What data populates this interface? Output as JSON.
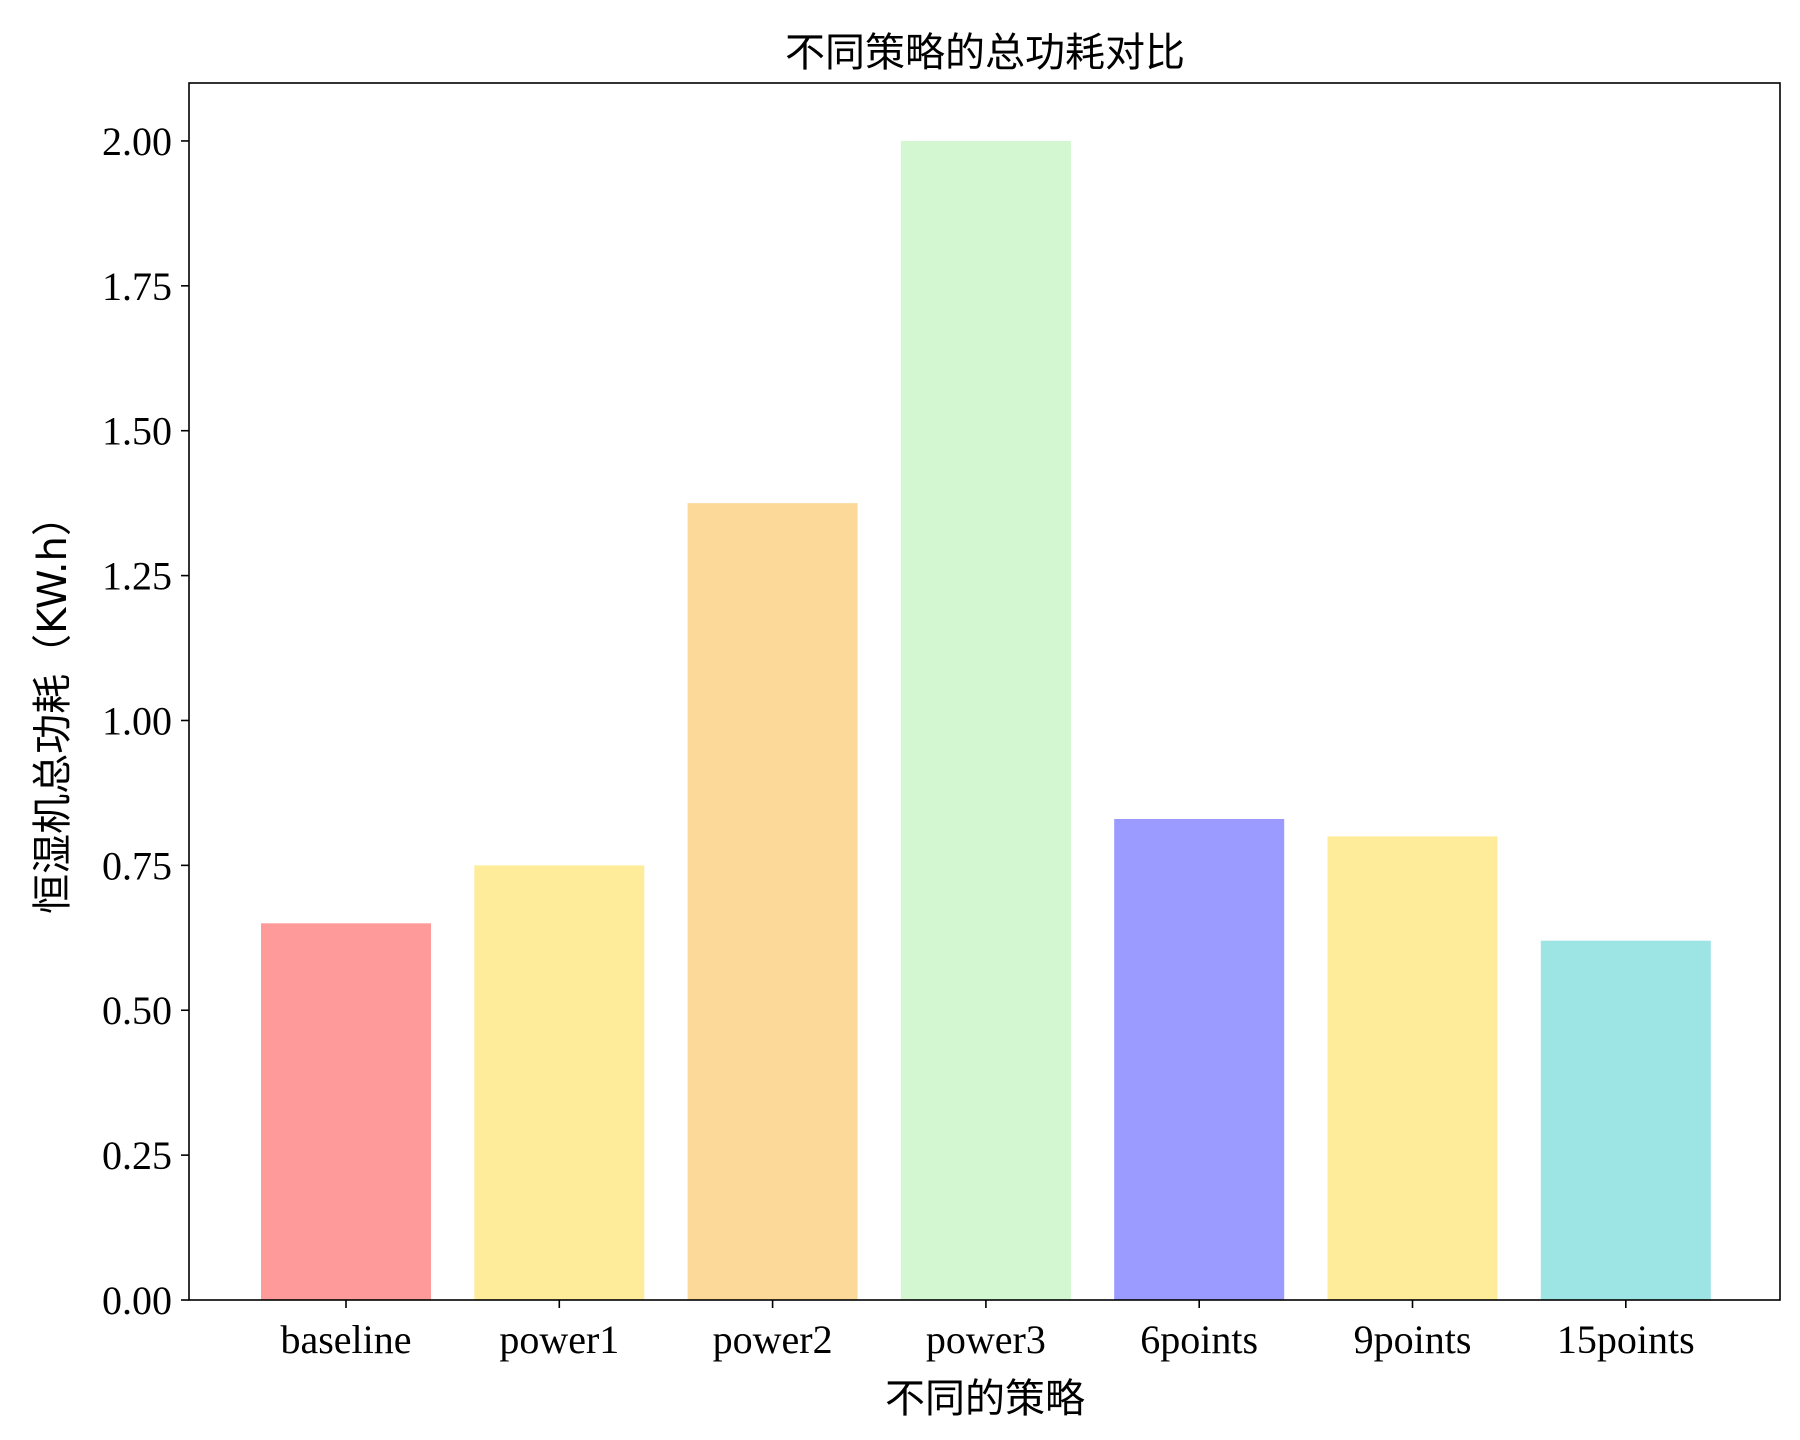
{
  "chart_data": {
    "type": "bar",
    "title": "不同策略的总功耗对比",
    "xlabel": "不同的策略",
    "ylabel": "恒湿机总功耗（KW.h）",
    "categories": [
      "baseline",
      "power1",
      "power2",
      "power3",
      "6points",
      "9points",
      "15points"
    ],
    "values": [
      0.65,
      0.75,
      1.375,
      2.0,
      0.83,
      0.8,
      0.62
    ],
    "colors": [
      "#ff9a9a",
      "#ffec9a",
      "#fcd999",
      "#d3f7d0",
      "#9b9bff",
      "#ffec9a",
      "#9de4e4"
    ],
    "ylim": [
      0,
      2.1
    ],
    "yticks": [
      0.0,
      0.25,
      0.5,
      0.75,
      1.0,
      1.25,
      1.5,
      1.75,
      2.0
    ],
    "ytick_labels": [
      "0.00",
      "0.25",
      "0.50",
      "0.75",
      "1.00",
      "1.25",
      "1.50",
      "1.75",
      "2.00"
    ],
    "grid": false,
    "legend": "none"
  }
}
